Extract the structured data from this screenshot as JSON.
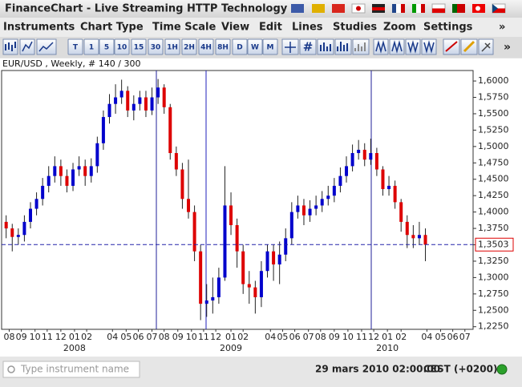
{
  "window": {
    "title": "FinanceChart - Live Streaming HTTP Technology"
  },
  "menu": [
    "Instruments",
    "Chart Type",
    "Time Scale",
    "View",
    "Edit",
    "Lines",
    "Studies",
    "Zoom",
    "Settings",
    "»"
  ],
  "toolbar": [
    "T",
    "1",
    "5",
    "10",
    "15",
    "30",
    "1H",
    "2H",
    "4H",
    "8H",
    "D",
    "W",
    "M"
  ],
  "status": {
    "search_placeholder": "Type instrument name",
    "datetime": "29 mars 2010 02:00:00",
    "timezone": "CEST (+0200)"
  },
  "chart_data": {
    "type": "candlestick",
    "title": "EUR/USD , Weekly, # 140 / 300",
    "x": [
      0,
      2,
      4,
      6,
      8,
      10,
      12,
      14,
      16,
      18,
      20,
      22,
      24,
      26,
      28,
      30,
      32,
      34,
      36,
      38,
      40,
      42,
      44,
      46,
      48,
      50,
      52,
      54,
      56,
      58,
      60,
      62,
      64,
      66,
      68,
      70,
      72,
      74,
      76,
      78,
      80,
      82,
      84,
      86,
      88,
      90,
      92,
      94,
      96,
      98,
      100,
      102,
      104,
      106,
      108,
      110,
      112,
      114,
      116,
      118,
      120,
      122,
      124,
      126,
      128,
      130,
      132,
      134,
      136,
      138
    ],
    "open": [
      1.385,
      1.375,
      1.362,
      1.365,
      1.385,
      1.405,
      1.42,
      1.44,
      1.455,
      1.47,
      1.455,
      1.44,
      1.465,
      1.47,
      1.455,
      1.47,
      1.505,
      1.545,
      1.565,
      1.575,
      1.585,
      1.555,
      1.565,
      1.575,
      1.555,
      1.575,
      1.59,
      1.56,
      1.49,
      1.465,
      1.42,
      1.4,
      1.34,
      1.26,
      1.265,
      1.27,
      1.3,
      1.41,
      1.38,
      1.34,
      1.29,
      1.285,
      1.27,
      1.31,
      1.34,
      1.32,
      1.335,
      1.36,
      1.4,
      1.41,
      1.395,
      1.405,
      1.41,
      1.42,
      1.425,
      1.44,
      1.455,
      1.47,
      1.49,
      1.495,
      1.48,
      1.49,
      1.465,
      1.435,
      1.44,
      1.415,
      1.385,
      1.365,
      1.36,
      1.365
    ],
    "high": [
      1.395,
      1.382,
      1.375,
      1.395,
      1.415,
      1.43,
      1.452,
      1.47,
      1.485,
      1.48,
      1.465,
      1.475,
      1.485,
      1.48,
      1.482,
      1.515,
      1.555,
      1.58,
      1.595,
      1.602,
      1.592,
      1.578,
      1.585,
      1.585,
      1.59,
      1.603,
      1.595,
      1.565,
      1.5,
      1.475,
      1.48,
      1.41,
      1.35,
      1.29,
      1.3,
      1.315,
      1.47,
      1.43,
      1.39,
      1.35,
      1.31,
      1.295,
      1.325,
      1.35,
      1.35,
      1.355,
      1.375,
      1.415,
      1.425,
      1.42,
      1.418,
      1.425,
      1.432,
      1.44,
      1.452,
      1.468,
      1.485,
      1.503,
      1.51,
      1.505,
      1.512,
      1.498,
      1.47,
      1.455,
      1.448,
      1.42,
      1.395,
      1.38,
      1.385,
      1.375
    ],
    "low": [
      1.36,
      1.34,
      1.35,
      1.355,
      1.375,
      1.395,
      1.41,
      1.43,
      1.445,
      1.44,
      1.43,
      1.432,
      1.455,
      1.44,
      1.445,
      1.46,
      1.495,
      1.535,
      1.55,
      1.565,
      1.545,
      1.54,
      1.555,
      1.545,
      1.548,
      1.565,
      1.55,
      1.48,
      1.455,
      1.405,
      1.39,
      1.325,
      1.235,
      1.24,
      1.245,
      1.26,
      1.295,
      1.365,
      1.315,
      1.275,
      1.26,
      1.245,
      1.255,
      1.3,
      1.295,
      1.29,
      1.325,
      1.35,
      1.39,
      1.38,
      1.385,
      1.395,
      1.4,
      1.41,
      1.415,
      1.43,
      1.445,
      1.462,
      1.48,
      1.47,
      1.472,
      1.455,
      1.425,
      1.425,
      1.405,
      1.37,
      1.345,
      1.345,
      1.35,
      1.325
    ],
    "close": [
      1.375,
      1.362,
      1.365,
      1.385,
      1.405,
      1.42,
      1.44,
      1.455,
      1.47,
      1.455,
      1.44,
      1.465,
      1.47,
      1.455,
      1.47,
      1.505,
      1.545,
      1.565,
      1.575,
      1.585,
      1.555,
      1.565,
      1.575,
      1.555,
      1.575,
      1.59,
      1.56,
      1.49,
      1.465,
      1.42,
      1.4,
      1.34,
      1.26,
      1.265,
      1.27,
      1.3,
      1.41,
      1.38,
      1.34,
      1.29,
      1.285,
      1.27,
      1.31,
      1.34,
      1.32,
      1.335,
      1.36,
      1.4,
      1.41,
      1.395,
      1.405,
      1.41,
      1.42,
      1.425,
      1.44,
      1.455,
      1.47,
      1.49,
      1.495,
      1.48,
      1.49,
      1.465,
      1.435,
      1.44,
      1.415,
      1.385,
      1.365,
      1.36,
      1.365,
      1.35
    ],
    "up_color": "#0000cc",
    "down_color": "#dd0000",
    "last_price": {
      "value": 1.3503,
      "label": "1,3503"
    },
    "xlim": [
      -1.5,
      153.7
    ],
    "xticks": [
      {
        "value": 1,
        "label": "08"
      },
      {
        "value": 5,
        "label": "09"
      },
      {
        "value": 9.5,
        "label": "10"
      },
      {
        "value": 13.5,
        "label": "11"
      },
      {
        "value": 18,
        "label": "12"
      },
      {
        "value": 22.5,
        "label": "01"
      },
      {
        "value": 26.5,
        "label": "02"
      },
      {
        "value": 35,
        "label": "04"
      },
      {
        "value": 39.5,
        "label": "05"
      },
      {
        "value": 43.5,
        "label": "06"
      },
      {
        "value": 48,
        "label": "07"
      },
      {
        "value": 52,
        "label": "08"
      },
      {
        "value": 56.5,
        "label": "09"
      },
      {
        "value": 61,
        "label": "10"
      },
      {
        "value": 65,
        "label": "11"
      },
      {
        "value": 69,
        "label": "12"
      },
      {
        "value": 74,
        "label": "01"
      },
      {
        "value": 78,
        "label": "02"
      },
      {
        "value": 87,
        "label": "04"
      },
      {
        "value": 91,
        "label": "05"
      },
      {
        "value": 95,
        "label": "06"
      },
      {
        "value": 99.5,
        "label": "07"
      },
      {
        "value": 103.5,
        "label": "08"
      },
      {
        "value": 108,
        "label": "09"
      },
      {
        "value": 112.5,
        "label": "10"
      },
      {
        "value": 117,
        "label": "11"
      },
      {
        "value": 121,
        "label": "12"
      },
      {
        "value": 125.5,
        "label": "01"
      },
      {
        "value": 130,
        "label": "02"
      },
      {
        "value": 138.5,
        "label": "04"
      },
      {
        "value": 143,
        "label": "05"
      },
      {
        "value": 147,
        "label": "06"
      },
      {
        "value": 151,
        "label": "07"
      }
    ],
    "year_ticks": [
      {
        "value": 22.5,
        "label": "2008"
      },
      {
        "value": 74,
        "label": "2009"
      },
      {
        "value": 125.5,
        "label": "2010"
      }
    ],
    "ylim": [
      1.221,
      1.616
    ],
    "yticks": [
      {
        "value": 1.6,
        "label": "1,6000"
      },
      {
        "value": 1.575,
        "label": "1,5750"
      },
      {
        "value": 1.55,
        "label": "1,5500"
      },
      {
        "value": 1.525,
        "label": "1,5250"
      },
      {
        "value": 1.5,
        "label": "1,5000"
      },
      {
        "value": 1.475,
        "label": "1,4750"
      },
      {
        "value": 1.45,
        "label": "1,4500"
      },
      {
        "value": 1.425,
        "label": "1,4250"
      },
      {
        "value": 1.4,
        "label": "1,4000"
      },
      {
        "value": 1.375,
        "label": "1,3750"
      },
      {
        "value": 1.35,
        "label": "1,3500"
      },
      {
        "value": 1.325,
        "label": "1,3250"
      },
      {
        "value": 1.3,
        "label": "1,3000"
      },
      {
        "value": 1.275,
        "label": "1,2750"
      },
      {
        "value": 1.25,
        "label": "1,2500"
      },
      {
        "value": 1.225,
        "label": "1,2250"
      }
    ]
  }
}
